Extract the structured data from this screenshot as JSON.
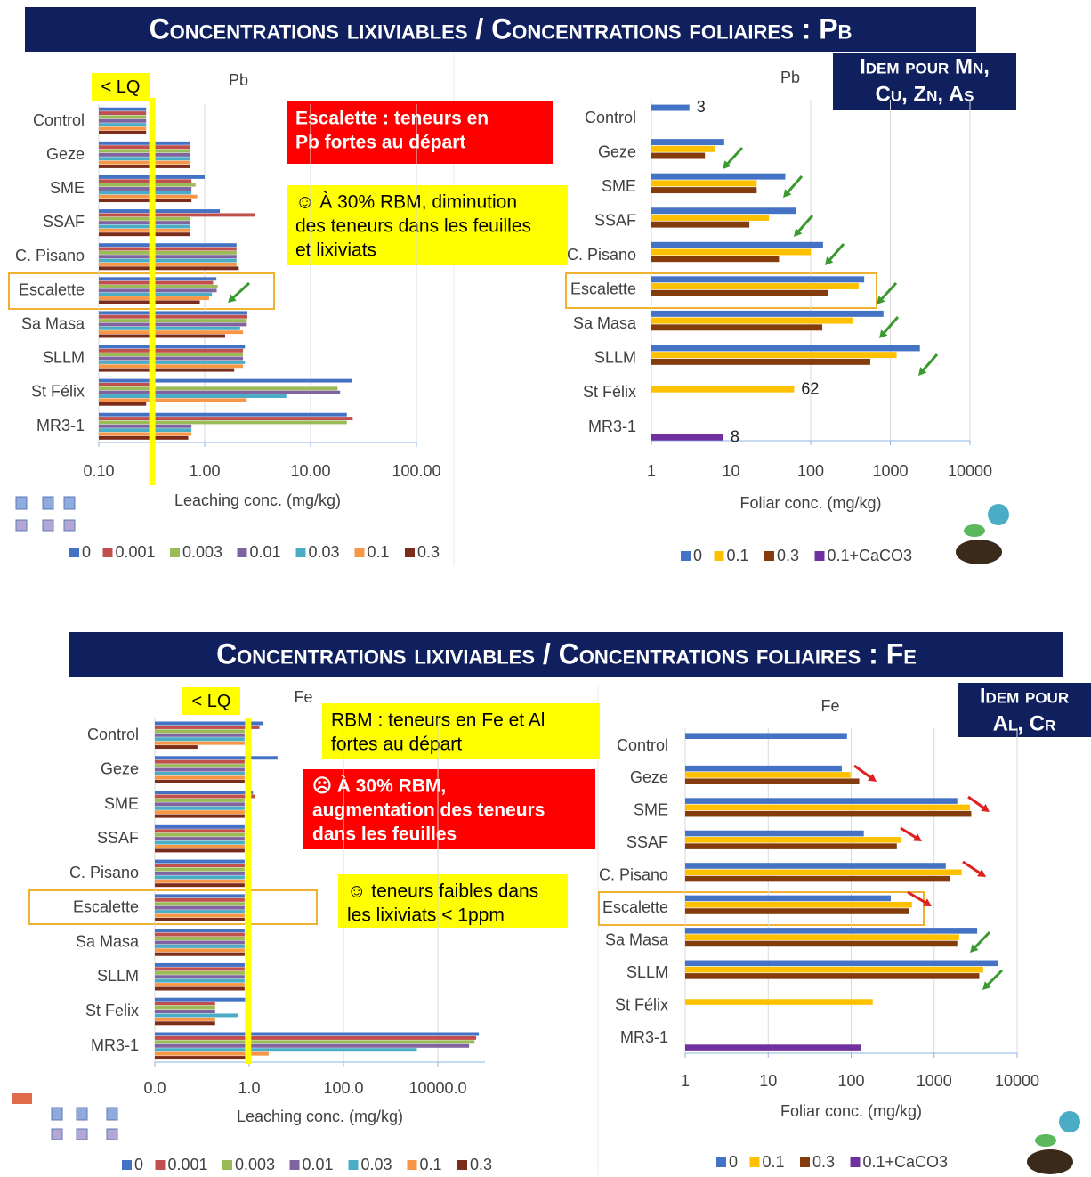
{
  "slides": [
    {
      "title": "Concentrations lixiviables / Concentrations foliaires : Pb",
      "side_note": {
        "color": "#10205e",
        "lines": [
          "Idem pour Mn,",
          "Cu, Zn, As"
        ]
      },
      "notes": [
        {
          "color": "#ff0000",
          "text_color": "#ffffff",
          "lines": [
            "Escalette : teneurs en",
            "Pb fortes au départ"
          ]
        },
        {
          "color": "#ffff00",
          "text_color": "#000000",
          "lines": [
            "☺  À 30% RBM, diminution",
            "des teneurs dans les feuilles",
            "et lixiviats"
          ]
        }
      ]
    },
    {
      "title": "Concentrations lixiviables / Concentrations foliaires : Fe",
      "side_note": {
        "color": "#10205e",
        "lines": [
          "Idem pour",
          "Al, Cr"
        ]
      },
      "notes": [
        {
          "color": "#ffff00",
          "text_color": "#000000",
          "lines": [
            "RBM : teneurs en Fe et Al",
            "fortes au départ"
          ]
        },
        {
          "color": "#ff0000",
          "text_color": "#ffffff",
          "lines": [
            "☹ À 30% RBM,",
            "augmentation des teneurs",
            "dans les feuilles"
          ]
        },
        {
          "color": "#ffff00",
          "text_color": "#000000",
          "lines": [
            "☺ teneurs faibles dans",
            "les lixiviats < 1ppm"
          ]
        }
      ]
    }
  ],
  "chart_data": [
    {
      "type": "barh",
      "title": "Pb",
      "xlabel": "Leaching conc. (mg/kg)",
      "log_scale": true,
      "grid": true,
      "xlim": [
        0.1,
        100
      ],
      "xticks": [
        {
          "value": 0.1,
          "label": "0.10"
        },
        {
          "value": 1,
          "label": "1.00"
        },
        {
          "value": 10,
          "label": "10.00"
        },
        {
          "value": 100,
          "label": "100.00"
        }
      ],
      "categories": [
        "Control",
        "Geze",
        "SME",
        "SSAF",
        "C. Pisano",
        "Escalette",
        "Sa Masa",
        "SLLM",
        "St Félix",
        "MR3-1"
      ],
      "reference_line": {
        "label": "< LQ",
        "value": 0.32,
        "color": "#ffff00"
      },
      "series": [
        {
          "name": "0",
          "color": "#4472c4",
          "values": [
            0.28,
            0.73,
            1.0,
            1.39,
            2.0,
            1.29,
            2.53,
            2.4,
            24.8,
            22
          ]
        },
        {
          "name": "0.001",
          "color": "#c0504d",
          "values": [
            0.28,
            0.73,
            0.75,
            3.0,
            2.0,
            1.2,
            2.53,
            2.3,
            0.3,
            25
          ]
        },
        {
          "name": "0.003",
          "color": "#9bbb59",
          "values": [
            0.28,
            0.73,
            0.82,
            0.72,
            2.0,
            1.33,
            2.5,
            2.3,
            18,
            22
          ]
        },
        {
          "name": "0.01",
          "color": "#8064a2",
          "values": [
            0.28,
            0.73,
            0.75,
            0.72,
            2.0,
            1.3,
            2.5,
            2.3,
            19,
            0.75
          ]
        },
        {
          "name": "0.03",
          "color": "#4bacc6",
          "values": [
            0.28,
            0.73,
            0.75,
            0.72,
            2.0,
            1.17,
            2.16,
            2.4,
            5.9,
            0.75
          ]
        },
        {
          "name": "0.1",
          "color": "#f79646",
          "values": [
            0.28,
            0.73,
            0.85,
            0.72,
            2.0,
            1.1,
            2.3,
            2.3,
            2.5,
            0.75
          ]
        },
        {
          "name": "0.3",
          "color": "#7b2c1a",
          "values": [
            0.28,
            0.73,
            0.75,
            0.72,
            2.1,
            0.9,
            1.56,
            1.9,
            0.28,
            0.7
          ]
        }
      ]
    },
    {
      "type": "barh",
      "title": "Pb",
      "xlabel": "Foliar conc. (mg/kg)",
      "log_scale": true,
      "grid": true,
      "xlim": [
        1,
        10000
      ],
      "xticks": [
        1,
        10,
        100,
        1000,
        10000
      ],
      "categories": [
        "Control",
        "Geze",
        "SME",
        "SSAF",
        "C. Pisano",
        "Escalette",
        "Sa Masa",
        "SLLM",
        "St Félix",
        "MR3-1"
      ],
      "series": [
        {
          "name": "0",
          "color": "#4472c4",
          "values": [
            3,
            8.2,
            48,
            66,
            143,
            470,
            820,
            2350,
            null,
            null
          ],
          "value_labels": [
            "3",
            null,
            null,
            null,
            null,
            null,
            null,
            null,
            null,
            null
          ]
        },
        {
          "name": "0.1",
          "color": "#ffc000",
          "values": [
            null,
            6.2,
            21,
            30,
            100,
            400,
            335,
            1200,
            62,
            null
          ],
          "value_labels": [
            null,
            null,
            null,
            null,
            null,
            null,
            null,
            null,
            "62",
            null
          ]
        },
        {
          "name": "0.3",
          "color": "#843c0c",
          "values": [
            null,
            4.7,
            21,
            17,
            40,
            165,
            140,
            560,
            null,
            null
          ]
        },
        {
          "name": "0.1+CaCO3",
          "color": "#7030a0",
          "values": [
            null,
            null,
            null,
            null,
            null,
            null,
            null,
            null,
            null,
            8
          ],
          "value_labels": [
            null,
            null,
            null,
            null,
            null,
            null,
            null,
            null,
            null,
            "8"
          ]
        }
      ]
    },
    {
      "type": "barh",
      "title": "Fe",
      "xlabel": "Leaching conc. (mg/kg)",
      "log_scale": true,
      "grid": true,
      "xlim": [
        0.01,
        100000
      ],
      "xticks": [
        {
          "value": 0.01,
          "label": "0.0"
        },
        {
          "value": 1,
          "label": "1.0"
        },
        {
          "value": 100,
          "label": "100.0"
        },
        {
          "value": 10000,
          "label": "10000.0"
        }
      ],
      "categories": [
        "Control",
        "Geze",
        "SME",
        "SSAF",
        "C. Pisano",
        "Escalette",
        "Sa Masa",
        "SLLM",
        "St Felix",
        "MR3-1"
      ],
      "reference_line": {
        "label": "< LQ",
        "value": 0.95,
        "color": "#ffff00"
      },
      "series": [
        {
          "name": "0",
          "color": "#4472c4",
          "values": [
            2.0,
            4.0,
            1.2,
            0.8,
            0.8,
            0.8,
            0.8,
            0.8,
            0.85,
            74000
          ]
        },
        {
          "name": "0.001",
          "color": "#c0504d",
          "values": [
            1.65,
            0.8,
            1.3,
            0.8,
            0.8,
            0.8,
            0.8,
            0.8,
            0.19,
            65000
          ]
        },
        {
          "name": "0.003",
          "color": "#9bbb59",
          "values": [
            0.8,
            0.8,
            0.8,
            0.8,
            0.8,
            0.8,
            0.8,
            0.8,
            0.19,
            60000
          ]
        },
        {
          "name": "0.01",
          "color": "#8064a2",
          "values": [
            0.8,
            0.8,
            0.8,
            0.8,
            0.8,
            0.8,
            0.8,
            0.8,
            0.19,
            46000
          ]
        },
        {
          "name": "0.03",
          "color": "#4bacc6",
          "values": [
            0.8,
            0.8,
            0.8,
            0.8,
            0.8,
            0.8,
            0.8,
            0.8,
            0.57,
            3600
          ]
        },
        {
          "name": "0.1",
          "color": "#f79646",
          "values": [
            0.8,
            0.8,
            0.8,
            0.8,
            0.8,
            0.8,
            0.8,
            0.8,
            0.19,
            2.6
          ]
        },
        {
          "name": "0.3",
          "color": "#7b2c1a",
          "values": [
            0.08,
            0.8,
            0.8,
            0.8,
            0.8,
            0.8,
            0.8,
            0.8,
            0.19,
            0.9
          ]
        }
      ]
    },
    {
      "type": "barh",
      "title": "Fe",
      "xlabel": "Foliar conc. (mg/kg)",
      "log_scale": true,
      "grid": true,
      "xlim": [
        1,
        10000
      ],
      "xticks": [
        1,
        10,
        100,
        1000,
        10000
      ],
      "categories": [
        "Control",
        "Geze",
        "SME",
        "SSAF",
        "C. Pisano",
        "Escalette",
        "Sa Masa",
        "SLLM",
        "St Félix",
        "MR3-1"
      ],
      "series": [
        {
          "name": "0",
          "color": "#4472c4",
          "values": [
            89,
            77,
            1900,
            142,
            1380,
            300,
            3300,
            5900,
            null,
            null
          ]
        },
        {
          "name": "0.1",
          "color": "#ffc000",
          "values": [
            null,
            98,
            2700,
            400,
            2150,
            540,
            2000,
            3900,
            182,
            null
          ]
        },
        {
          "name": "0.3",
          "color": "#843c0c",
          "values": [
            null,
            125,
            2800,
            355,
            1570,
            500,
            1900,
            3500,
            null,
            null
          ]
        },
        {
          "name": "0.1+CaCO3",
          "color": "#7030a0",
          "values": [
            null,
            null,
            null,
            null,
            null,
            null,
            null,
            null,
            null,
            132
          ]
        }
      ]
    }
  ]
}
